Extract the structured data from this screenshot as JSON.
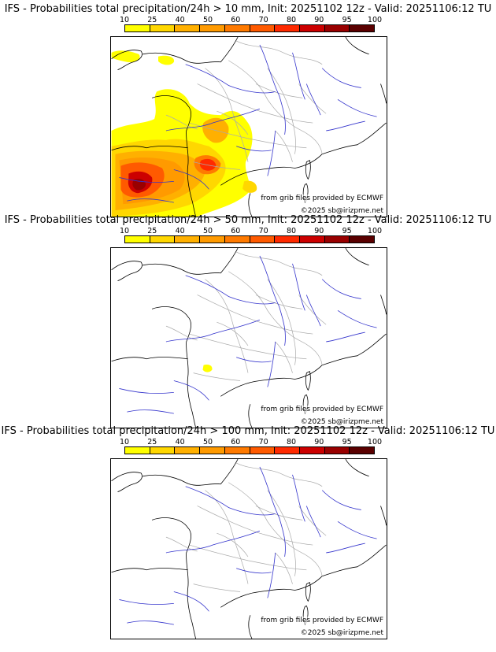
{
  "panels": [
    {
      "title": "IFS - Probabilities total precipitation/24h > 10 mm, Init: 20251102 12z - Valid: 20251106:12 TU",
      "threshold_mm": 10,
      "has_precip": "heavy"
    },
    {
      "title": "IFS - Probabilities total precipitation/24h > 50 mm, Init: 20251102 12z - Valid: 20251106:12 TU",
      "threshold_mm": 50,
      "has_precip": "tiny"
    },
    {
      "title": "IFS - Probabilities total precipitation/24h > 100 mm, Init: 20251102 12z - Valid: 20251106:12 TU",
      "threshold_mm": 100,
      "has_precip": "none"
    }
  ],
  "colorbar": {
    "labels": [
      "10",
      "25",
      "40",
      "50",
      "60",
      "70",
      "80",
      "90",
      "95",
      "100"
    ],
    "colors": [
      "#ffff00",
      "#ffd700",
      "#ffb000",
      "#ff9a00",
      "#ff7a00",
      "#ff5a00",
      "#ff2a00",
      "#cc0000",
      "#990000",
      "#5a0000"
    ]
  },
  "credits": {
    "source": "from grib files provided by ECMWF",
    "copyright": "©2025 sb@irizpme.net"
  },
  "colors": {
    "coast": "#000000",
    "borders": "#aaaaaa",
    "rivers": "#3333cc"
  }
}
